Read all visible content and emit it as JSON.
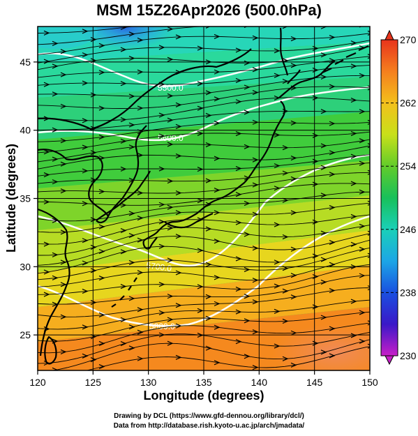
{
  "title": "MSM 15Z26Apr2026 (500.0hPa)",
  "map": {
    "xlabel": "Longitude (degrees)",
    "ylabel": "Latitude  (degrees)",
    "x_ticks": [
      "120",
      "125",
      "130",
      "135",
      "140",
      "145",
      "150"
    ],
    "y_ticks": [
      "25",
      "30",
      "35",
      "40",
      "45"
    ],
    "lon_range": [
      120,
      150
    ],
    "lat_range": [
      22.4,
      47.6
    ]
  },
  "colorbar": {
    "range": [
      230,
      270
    ],
    "tick_labels": [
      "270",
      "262",
      "254",
      "246",
      "238",
      "230"
    ]
  },
  "contours": [
    {
      "label": "5500.0"
    },
    {
      "label": "5600.0"
    },
    {
      "label": "5700.0"
    },
    {
      "label": "5800.0"
    }
  ],
  "credit": {
    "line1": "Drawing by DCL (https://www.gfd-dennou.org/library/dcl/)",
    "line2": "Data from http://database.rish.kyoto-u.ac.jp/arch/jmadata/"
  },
  "colors": {
    "contour": "#ffffff",
    "streamline": "#000000",
    "coast": "#000000"
  }
}
